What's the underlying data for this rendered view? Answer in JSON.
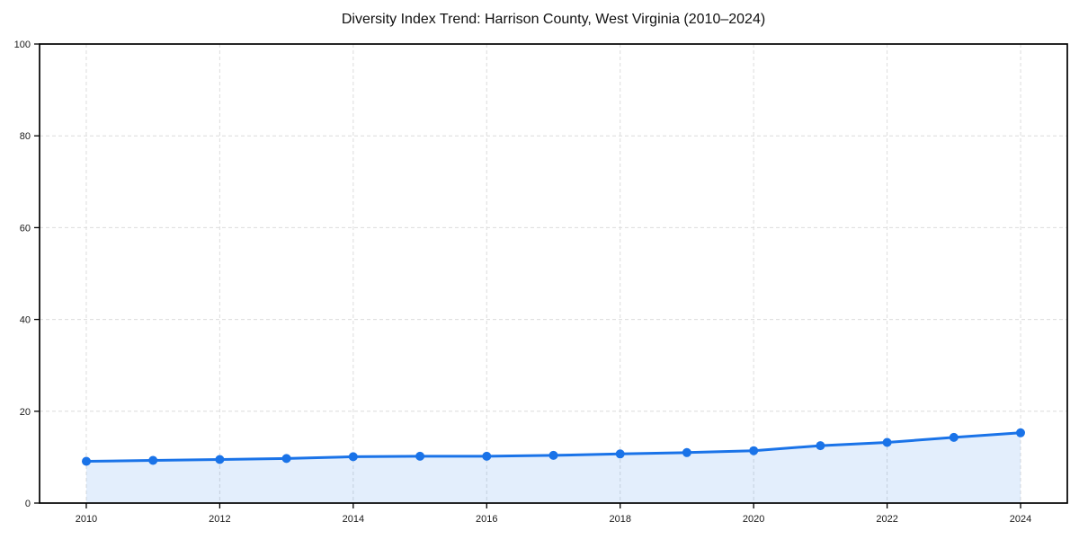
{
  "chart_data": {
    "type": "line",
    "title": "Diversity Index Trend: Harrison County, West Virginia (2010–2024)",
    "x": [
      2010,
      2011,
      2012,
      2013,
      2014,
      2015,
      2016,
      2017,
      2018,
      2019,
      2020,
      2021,
      2022,
      2023,
      2024
    ],
    "values": [
      9.1,
      9.3,
      9.5,
      9.7,
      10.1,
      10.2,
      10.2,
      10.4,
      10.7,
      11.0,
      11.4,
      12.5,
      13.2,
      14.3,
      15.3
    ],
    "xlabel": "",
    "ylabel": "",
    "xlim": [
      2009.3,
      2024.7
    ],
    "ylim": [
      0,
      100
    ],
    "xticks": [
      2010,
      2012,
      2014,
      2016,
      2018,
      2020,
      2022,
      2024
    ],
    "yticks": [
      0,
      20,
      40,
      60,
      80,
      100
    ],
    "grid": true,
    "grid_style": "dashed",
    "legend_position": "none",
    "colors": {
      "line": "#1a73e8",
      "marker": "#1a73e8",
      "area_fill": "rgba(26,115,232,0.12)",
      "grid": "#dcdcdc",
      "axis": "#000000",
      "tick_label": "#1a1a1a",
      "title_text": "#111111",
      "background": "#ffffff"
    },
    "marker_shape": "circle",
    "area_filled_between": "line and y=0"
  }
}
